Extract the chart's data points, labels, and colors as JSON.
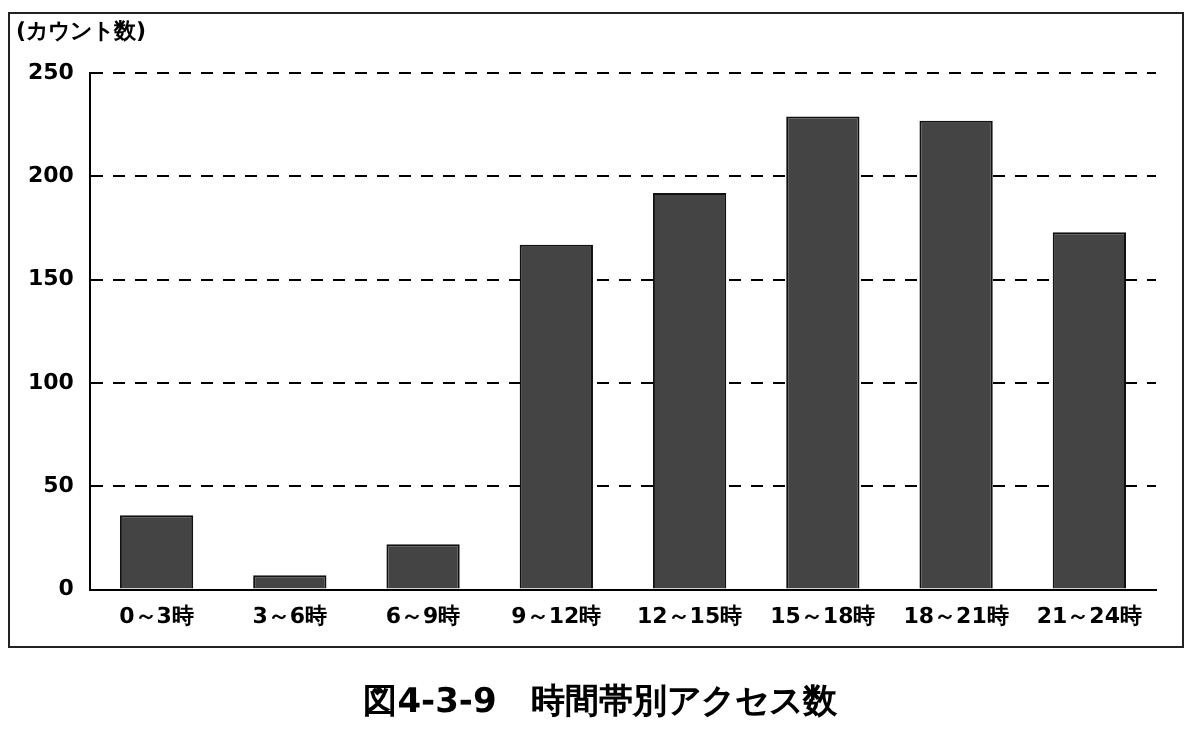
{
  "chart_data": {
    "type": "bar",
    "title": "図4-3-9　時間帯別アクセス数",
    "ylabel": "(カウント数)",
    "categories": [
      "0～3時",
      "3～6時",
      "6～9時",
      "9～12時",
      "12～15時",
      "15～18時",
      "18～21時",
      "21～24時"
    ],
    "values": [
      36,
      7,
      22,
      167,
      192,
      229,
      227,
      173
    ],
    "color": "#444444",
    "ylim": [
      0,
      250
    ],
    "yticks": [
      0,
      50,
      100,
      150,
      200,
      250
    ],
    "grid": "y",
    "line_style": "dashed"
  }
}
